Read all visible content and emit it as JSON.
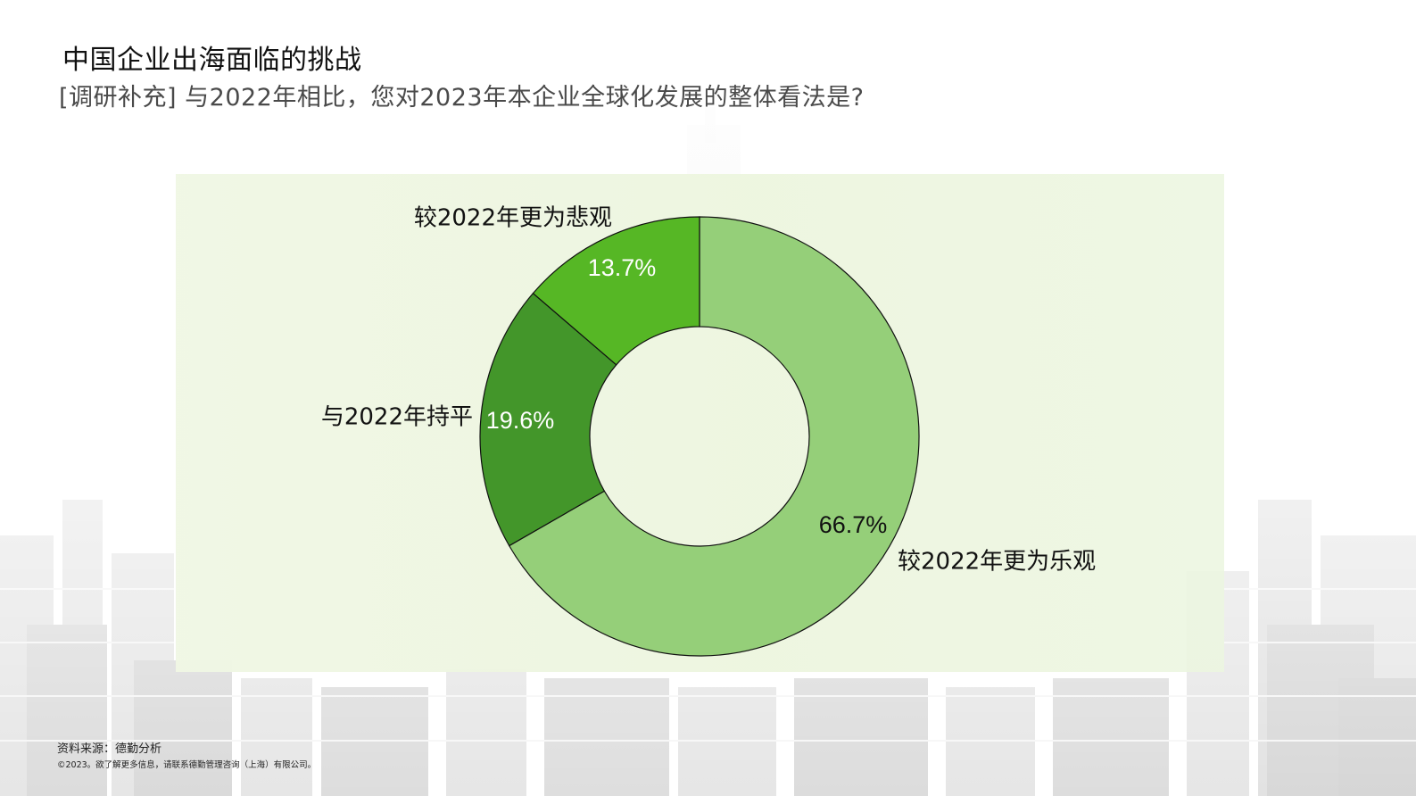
{
  "page": {
    "title": "中国企业出海面临的挑战",
    "subtitle": "[调研补充] 与2022年相比，您对2023年本企业全球化发展的整体看法是?"
  },
  "chart_data": {
    "type": "pie",
    "donut": true,
    "start": "12 o'clock, clockwise",
    "slices": [
      {
        "label": "较2022年更为乐观",
        "value": 66.7,
        "value_label": "66.7%",
        "color": "#95cf79",
        "label_color": "#111111",
        "value_color": "#111111"
      },
      {
        "label": "与2022年持平",
        "value": 19.6,
        "value_label": "19.6%",
        "color": "#43962a",
        "label_color": "#111111",
        "value_color": "#ffffff"
      },
      {
        "label": "较2022年更为悲观",
        "value": 13.7,
        "value_label": "13.7%",
        "color": "#56b725",
        "label_color": "#111111",
        "value_color": "#ffffff"
      }
    ]
  },
  "footer": {
    "source": "资料来源：德勤分析",
    "copyright": "©2023。欲了解更多信息，请联系德勤管理咨询（上海）有限公司。"
  },
  "theme": {
    "panel_color": "#eef6e2",
    "slice_stroke": "#111111"
  }
}
